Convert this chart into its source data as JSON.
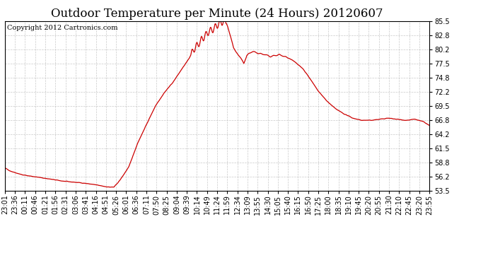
{
  "title": "Outdoor Temperature per Minute (24 Hours) 20120607",
  "copyright_text": "Copyright 2012 Cartronics.com",
  "line_color": "#cc0000",
  "background_color": "#ffffff",
  "plot_bg_color": "#ffffff",
  "grid_color": "#bbbbbb",
  "yticks": [
    53.5,
    56.2,
    58.8,
    61.5,
    64.2,
    66.8,
    69.5,
    72.2,
    74.8,
    77.5,
    80.2,
    82.8,
    85.5
  ],
  "ylim": [
    53.5,
    85.5
  ],
  "xtick_labels": [
    "23:01",
    "23:36",
    "00:11",
    "00:46",
    "01:21",
    "01:56",
    "02:31",
    "03:06",
    "03:41",
    "04:16",
    "04:51",
    "05:26",
    "06:01",
    "06:36",
    "07:11",
    "07:50",
    "08:25",
    "09:04",
    "09:39",
    "10:14",
    "10:49",
    "11:24",
    "11:59",
    "12:34",
    "13:09",
    "13:55",
    "14:30",
    "15:05",
    "15:40",
    "16:15",
    "16:50",
    "17:25",
    "18:00",
    "18:35",
    "19:10",
    "19:45",
    "20:20",
    "20:55",
    "21:30",
    "22:10",
    "22:45",
    "23:20",
    "23:55"
  ],
  "title_fontsize": 12,
  "copyright_fontsize": 7,
  "tick_fontsize": 7,
  "linewidth": 0.9
}
